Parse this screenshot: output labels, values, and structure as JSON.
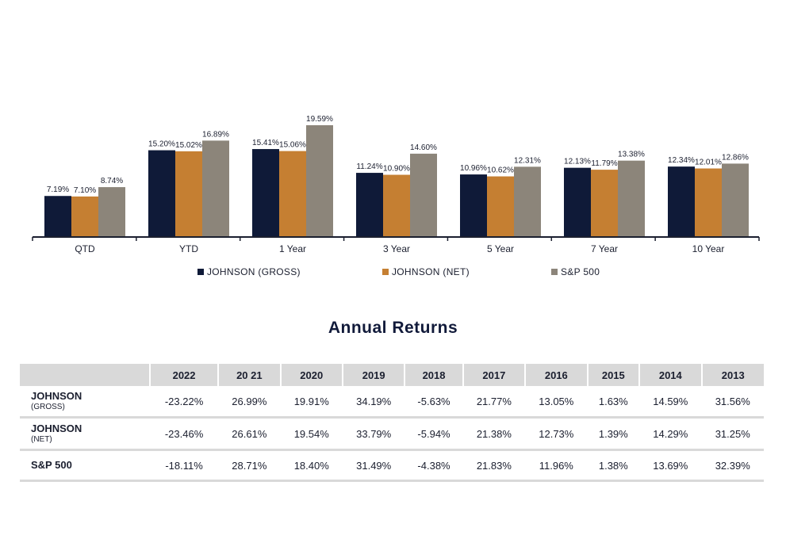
{
  "chart_data": {
    "type": "bar",
    "categories": [
      "QTD",
      "YTD",
      "1 Year",
      "3 Year",
      "5 Year",
      "7 Year",
      "10 Year"
    ],
    "series": [
      {
        "name": "JOHNSON (GROSS)",
        "values": [
          7.19,
          15.2,
          15.41,
          11.24,
          10.96,
          12.13,
          12.34
        ],
        "labels": [
          "7.19%",
          "15.20%",
          "15.41%",
          "11.24%",
          "10.96%",
          "12.13%",
          "12.34%"
        ],
        "color": "#0f1a38"
      },
      {
        "name": "JOHNSON (NET)",
        "values": [
          7.1,
          15.02,
          15.06,
          10.9,
          10.62,
          11.79,
          12.01
        ],
        "labels": [
          "7.10%",
          "15.02%",
          "15.06%",
          "10.90%",
          "10.62%",
          "11.79%",
          "12.01%"
        ],
        "color": "#c57f32"
      },
      {
        "name": "S&P 500",
        "values": [
          8.74,
          16.89,
          19.59,
          14.6,
          12.31,
          13.38,
          12.86
        ],
        "labels": [
          "8.74%",
          "16.89%",
          "19.59%",
          "14.60%",
          "12.31%",
          "13.38%",
          "12.86%"
        ],
        "color": "#8c857a"
      }
    ],
    "ylim": [
      0,
      20
    ],
    "grid": false,
    "legend_position": "bottom"
  },
  "table": {
    "title": "Annual Returns",
    "columns": [
      "2022",
      "20 21",
      "2020",
      "2019",
      "2018",
      "2017",
      "2016",
      "2015",
      "2014",
      "2013"
    ],
    "rows": [
      {
        "label": "JOHNSON",
        "sublabel": "(GROSS)",
        "values": [
          "-23.22%",
          "26.99%",
          "19.91%",
          "34.19%",
          "-5.63%",
          "21.77%",
          "13.05%",
          "1.63%",
          "14.59%",
          "31.56%"
        ]
      },
      {
        "label": "JOHNSON",
        "sublabel": "(NET)",
        "values": [
          "-23.46%",
          "26.61%",
          "19.54%",
          "33.79%",
          "-5.94%",
          "21.38%",
          "12.73%",
          "1.39%",
          "14.29%",
          "31.25%"
        ]
      },
      {
        "label": "S&P 500",
        "sublabel": "",
        "values": [
          "-18.11%",
          "28.71%",
          "18.40%",
          "31.49%",
          "-4.38%",
          "21.83%",
          "11.96%",
          "1.38%",
          "13.69%",
          "32.39%"
        ]
      }
    ]
  }
}
